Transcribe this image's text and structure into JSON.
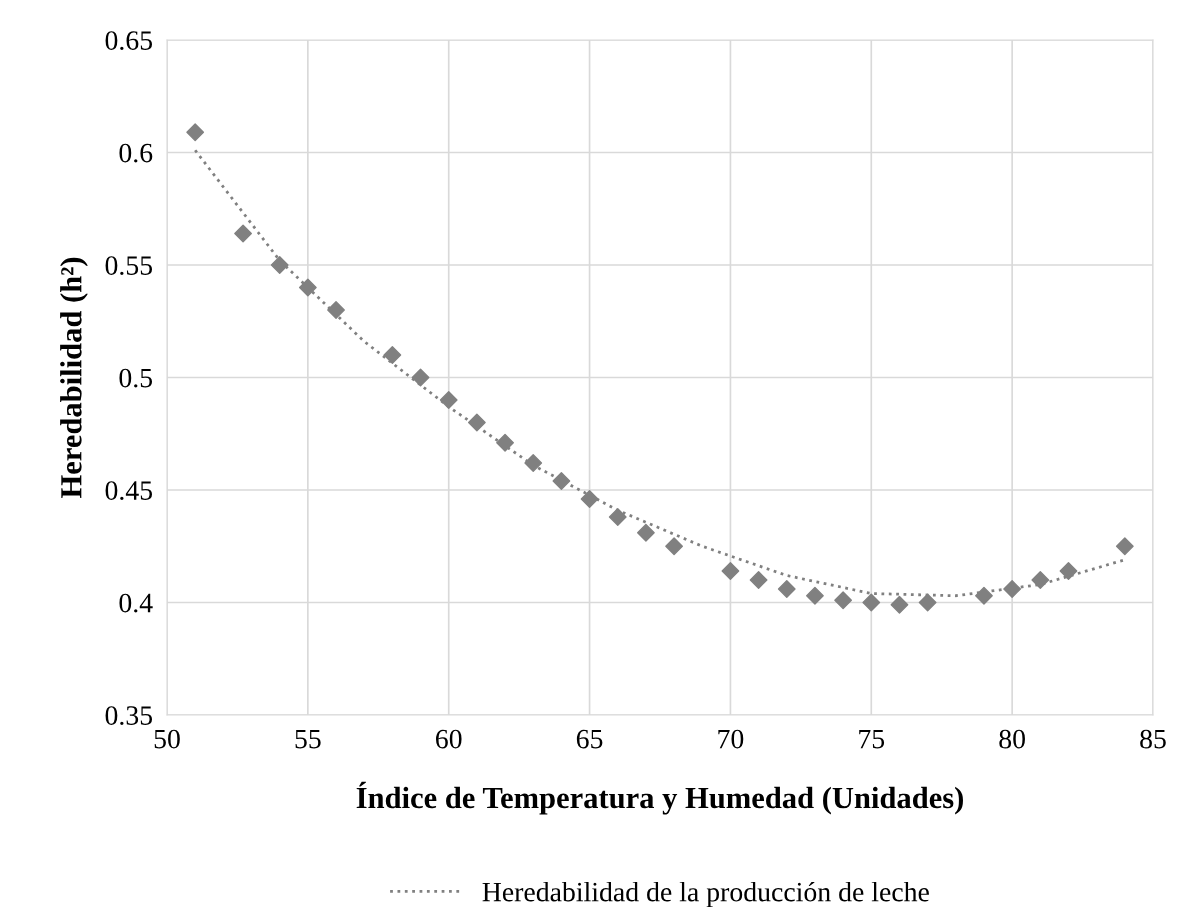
{
  "chart_data": {
    "type": "scatter",
    "xlabel": "Índice de Temperatura y Humedad (Unidades)",
    "ylabel": "Heredabilidad (h²)",
    "xlim": [
      50,
      85
    ],
    "xticks": [
      50,
      55,
      60,
      65,
      70,
      75,
      80,
      85
    ],
    "ylim": [
      0.35,
      0.65
    ],
    "yticks": [
      0.35,
      0.4,
      0.45,
      0.5,
      0.55,
      0.6,
      0.65
    ],
    "grid": true,
    "legend": "bottom",
    "marker": "diamond",
    "series": [
      {
        "color": "#808080",
        "x": [
          51,
          52.7,
          54,
          55,
          56,
          58,
          59,
          60,
          61,
          62,
          63,
          64,
          65,
          66,
          67,
          68,
          70,
          71,
          72,
          73,
          74,
          75,
          76,
          77,
          79,
          80,
          81,
          82,
          84
        ],
        "values": [
          0.609,
          0.564,
          0.55,
          0.54,
          0.53,
          0.51,
          0.5,
          0.49,
          0.48,
          0.471,
          0.462,
          0.454,
          0.446,
          0.438,
          0.431,
          0.425,
          0.414,
          0.41,
          0.406,
          0.403,
          0.401,
          0.4,
          0.399,
          0.4,
          0.403,
          0.406,
          0.41,
          0.414,
          0.425
        ]
      },
      {
        "type": "line",
        "name": "Heredabilidad de la producción de leche",
        "color": "#808080",
        "line_style": "dotted",
        "marker": "none",
        "x": [
          51,
          54,
          57,
          60,
          63,
          66,
          69,
          72,
          75,
          78,
          81,
          84
        ],
        "values": [
          0.601,
          0.552,
          0.516,
          0.487,
          0.461,
          0.441,
          0.425,
          0.412,
          0.404,
          0.403,
          0.408,
          0.419
        ]
      }
    ]
  }
}
